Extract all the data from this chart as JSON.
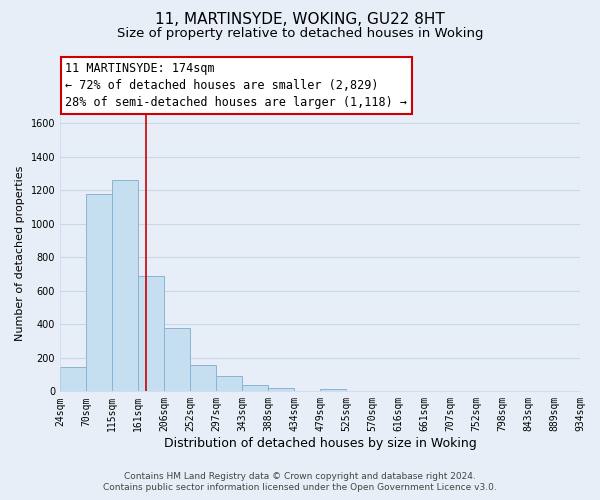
{
  "title": "11, MARTINSYDE, WOKING, GU22 8HT",
  "subtitle": "Size of property relative to detached houses in Woking",
  "xlabel": "Distribution of detached houses by size in Woking",
  "ylabel": "Number of detached properties",
  "bin_edges": [
    24,
    70,
    115,
    161,
    206,
    252,
    297,
    343,
    388,
    434,
    479,
    525,
    570,
    616,
    661,
    707,
    752,
    798,
    843,
    889,
    934
  ],
  "bar_heights": [
    148,
    1178,
    1258,
    690,
    375,
    160,
    93,
    38,
    22,
    0,
    13,
    0,
    0,
    0,
    0,
    0,
    0,
    0,
    0,
    0
  ],
  "bar_color": "#c6dff0",
  "bar_edge_color": "#8ab4d4",
  "vline_color": "#cc0000",
  "vline_x": 174,
  "annotation_line1": "11 MARTINSYDE: 174sqm",
  "annotation_line2": "← 72% of detached houses are smaller (2,829)",
  "annotation_line3": "28% of semi-detached houses are larger (1,118) →",
  "annotation_box_color": "#ffffff",
  "annotation_box_edge": "#cc0000",
  "ylim": [
    0,
    1650
  ],
  "yticks": [
    0,
    200,
    400,
    600,
    800,
    1000,
    1200,
    1400,
    1600
  ],
  "footer_line1": "Contains HM Land Registry data © Crown copyright and database right 2024.",
  "footer_line2": "Contains public sector information licensed under the Open Government Licence v3.0.",
  "bg_color": "#e8eef7",
  "grid_color": "#c8d8ec",
  "title_fontsize": 11,
  "subtitle_fontsize": 9.5,
  "xlabel_fontsize": 9,
  "ylabel_fontsize": 8,
  "tick_fontsize": 7,
  "annotation_fontsize": 8.5,
  "footer_fontsize": 6.5
}
